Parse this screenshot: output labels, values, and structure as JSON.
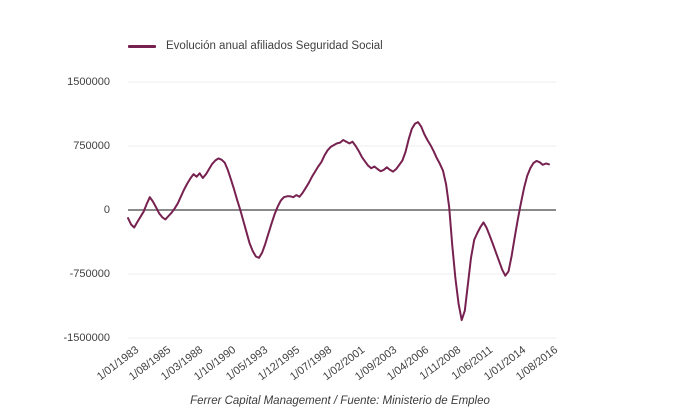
{
  "legend": {
    "label": "Evolución anual afiliados Seguridad Social"
  },
  "footer": {
    "text": "Ferrer Capital Management / Fuente: Ministerio de Empleo"
  },
  "colors": {
    "series": "#772150",
    "zero_axis": "#8a8a8a",
    "gridline": "#ececec",
    "tick_label": "#3f3f3f",
    "footer_text": "#3c3c3c",
    "background": "#ffffff"
  },
  "chart_data": {
    "type": "line",
    "title": "",
    "legend_position": "top-left",
    "grid": "horizontal",
    "zero_axis": true,
    "ylim": [
      -1500000,
      1500000
    ],
    "y_ticks": [
      1500000,
      750000,
      0,
      -750000,
      -1500000
    ],
    "x_tick_labels": [
      "1/01/1983",
      "1/08/1985",
      "1/03/1988",
      "1/10/1990",
      "1/05/1993",
      "1/12/1995",
      "1/07/1998",
      "1/02/2001",
      "1/09/2003",
      "1/04/2006",
      "1/11/2008",
      "1/06/2011",
      "1/01/2014",
      "1/08/2016"
    ],
    "series": [
      {
        "name": "Evolución anual afiliados Seguridad Social",
        "color": "#772150",
        "start_date": "1/01/1983",
        "end_date": "1/10/2016",
        "interval_months": 3,
        "values": [
          -95000,
          -170000,
          -205000,
          -140000,
          -80000,
          -20000,
          70000,
          150000,
          100000,
          30000,
          -40000,
          -85000,
          -110000,
          -70000,
          -30000,
          20000,
          80000,
          160000,
          240000,
          310000,
          370000,
          420000,
          390000,
          430000,
          375000,
          420000,
          480000,
          540000,
          580000,
          605000,
          590000,
          555000,
          470000,
          360000,
          245000,
          120000,
          0,
          -130000,
          -260000,
          -390000,
          -480000,
          -545000,
          -560000,
          -500000,
          -400000,
          -280000,
          -160000,
          -50000,
          40000,
          110000,
          150000,
          160000,
          160000,
          150000,
          175000,
          155000,
          200000,
          260000,
          320000,
          390000,
          450000,
          510000,
          560000,
          640000,
          700000,
          740000,
          760000,
          780000,
          790000,
          820000,
          800000,
          780000,
          800000,
          750000,
          690000,
          620000,
          570000,
          520000,
          490000,
          510000,
          480000,
          455000,
          470000,
          500000,
          470000,
          450000,
          480000,
          530000,
          580000,
          680000,
          830000,
          950000,
          1010000,
          1030000,
          980000,
          890000,
          820000,
          760000,
          690000,
          610000,
          540000,
          460000,
          300000,
          30000,
          -420000,
          -800000,
          -1100000,
          -1290000,
          -1180000,
          -870000,
          -560000,
          -350000,
          -270000,
          -200000,
          -145000,
          -210000,
          -300000,
          -400000,
          -500000,
          -600000,
          -700000,
          -770000,
          -720000,
          -540000,
          -320000,
          -110000,
          80000,
          260000,
          400000,
          490000,
          550000,
          575000,
          560000,
          530000,
          545000,
          535000
        ]
      }
    ]
  }
}
